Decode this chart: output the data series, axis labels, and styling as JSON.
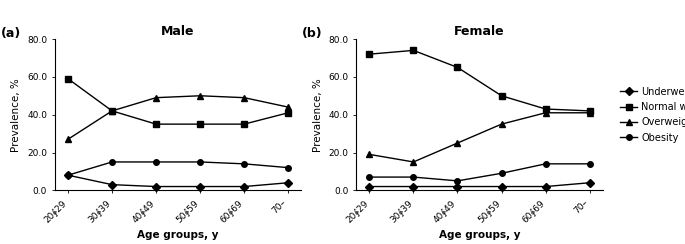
{
  "age_groups": [
    "20∳29",
    "30∳39",
    "40∳49",
    "50∳59",
    "60∳69",
    "70–"
  ],
  "male": {
    "underweight": [
      8.0,
      3.0,
      2.0,
      2.0,
      2.0,
      4.0
    ],
    "normal_weight": [
      59.0,
      42.0,
      35.0,
      35.0,
      35.0,
      41.0
    ],
    "overweight": [
      27.0,
      42.0,
      49.0,
      50.0,
      49.0,
      44.0
    ],
    "obesity": [
      8.0,
      15.0,
      15.0,
      15.0,
      14.0,
      12.0
    ]
  },
  "female": {
    "underweight": [
      2.0,
      2.0,
      2.0,
      2.0,
      2.0,
      4.0
    ],
    "normal_weight": [
      72.0,
      74.0,
      65.0,
      50.0,
      43.0,
      42.0
    ],
    "overweight": [
      19.0,
      15.0,
      25.0,
      35.0,
      41.0,
      41.0
    ],
    "obesity": [
      7.0,
      7.0,
      5.0,
      9.0,
      14.0,
      14.0
    ]
  },
  "ylim": [
    0.0,
    80.0
  ],
  "yticks": [
    0.0,
    20.0,
    40.0,
    60.0,
    80.0
  ],
  "ylabel": "Prevalence, %",
  "xlabel": "Age groups, y",
  "title_male": "Male",
  "title_female": "Female",
  "label_a": "(a)",
  "label_b": "(b)",
  "series_labels": [
    "Underweight",
    "Normal weight",
    "Overweight",
    "Obesity"
  ],
  "line_color": "#000000",
  "markers": [
    "D",
    "s",
    "^",
    "o"
  ],
  "markersize": 4,
  "linewidth": 1.0,
  "title_fontsize": 9,
  "axis_label_fontsize": 7.5,
  "tick_fontsize": 6.5,
  "legend_fontsize": 7,
  "panel_label_fontsize": 9
}
